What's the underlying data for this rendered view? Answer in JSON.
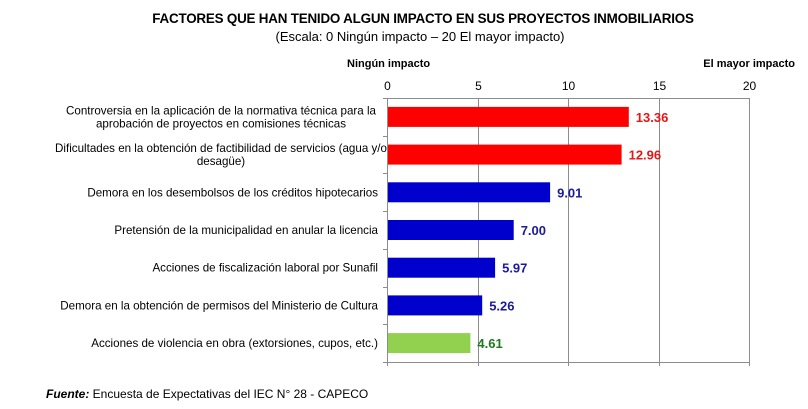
{
  "chart_data": {
    "type": "bar",
    "orientation": "horizontal",
    "title": "FACTORES QUE HAN TENIDO ALGUN IMPACTO EN SUS PROYECTOS INMOBILIARIOS",
    "subtitle": "(Escala: 0 Ningún impacto – 20 El mayor impacto)",
    "xlabel": "",
    "ylabel": "",
    "axis_low_label": "Ningún impacto",
    "axis_high_label": "El mayor impacto",
    "xlim": [
      0,
      20
    ],
    "xticks": [
      0,
      5,
      10,
      15,
      20
    ],
    "xtick_labels": [
      "0",
      "5",
      "10",
      "15",
      "20"
    ],
    "xaxis_position": "top",
    "grid": true,
    "legend": "none",
    "categories": [
      "Controversia en la aplicación de la normativa técnica para la aprobación de proyectos en comisiones técnicas",
      "Dificultades en la obtención de factibilidad de servicios (agua y/o desagüe)",
      "Demora en los desembolsos de los créditos hipotecarios",
      "Pretensión de la municipalidad en anular la licencia",
      "Acciones de fiscalización laboral por Sunafil",
      "Demora en la obtención de permisos del Ministerio de Cultura",
      "Acciones de violencia en obra (extorsiones, cupos, etc.)"
    ],
    "category_lines": [
      [
        "Controversia en la aplicación de la normativa técnica para la",
        "aprobación de proyectos en comisiones técnicas"
      ],
      [
        "Dificultades en la obtención de factibilidad de servicios (agua y/o",
        "desagüe)"
      ],
      [
        "Demora en los desembolsos de los créditos hipotecarios"
      ],
      [
        "Pretensión de la municipalidad en anular la licencia"
      ],
      [
        "Acciones de fiscalización laboral por Sunafil"
      ],
      [
        "Demora en la obtención de permisos del Ministerio de Cultura"
      ],
      [
        "Acciones de violencia en obra (extorsiones, cupos, etc.)"
      ]
    ],
    "values": [
      13.36,
      12.96,
      9.01,
      7.0,
      5.97,
      5.26,
      4.61
    ],
    "value_labels": [
      "13.36",
      "12.96",
      "9.01",
      "7.00",
      "5.97",
      "5.26",
      "4.61"
    ],
    "bar_colors": [
      "#FF0000",
      "#FF0000",
      "#0000CC",
      "#0000CC",
      "#0000CC",
      "#0000CC",
      "#92D050"
    ],
    "value_label_colors": [
      "#E01818",
      "#E01818",
      "#1A1A9E",
      "#1A1A9E",
      "#1A1A9E",
      "#1A1A9E",
      "#1E7A1E"
    ],
    "gridline_color": "#8C8C8C"
  },
  "footer": {
    "source_label": "Fuente:",
    "source_text": " Encuesta de Expectativas del IEC N° 28 - CAPECO"
  }
}
